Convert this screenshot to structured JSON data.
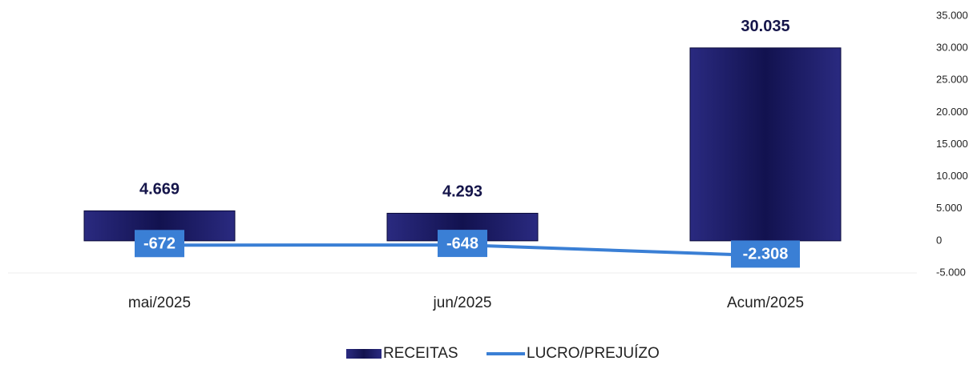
{
  "chart_data": {
    "type": "bar",
    "categories": [
      "mai/2025",
      "jun/2025",
      "Acum/2025"
    ],
    "series": [
      {
        "name": "RECEITAS",
        "type": "bar",
        "color": "#15155a",
        "values": [
          4669,
          4293,
          30035
        ],
        "value_labels": [
          "4.669",
          "4.293",
          "30.035"
        ]
      },
      {
        "name": "LUCRO/PREJUÍZO",
        "type": "line",
        "color": "#3a7fd5",
        "values": [
          -672,
          -648,
          -2308
        ],
        "value_labels": [
          "-672",
          "-648",
          "-2.308"
        ]
      }
    ],
    "ylim": [
      -5000,
      35000
    ],
    "yticks": [
      {
        "value": -5000,
        "label": "-5.000"
      },
      0,
      {
        "value": 5000,
        "label": "5.000"
      },
      {
        "value": 10000,
        "label": "10.000"
      },
      {
        "value": 15000,
        "label": "15.000"
      },
      {
        "value": 20000,
        "label": "20.000"
      },
      {
        "value": 25000,
        "label": "25.000"
      },
      {
        "value": 30000,
        "label": "30.000"
      },
      {
        "value": 35000,
        "label": "35.000"
      }
    ],
    "legend": "bottom"
  }
}
